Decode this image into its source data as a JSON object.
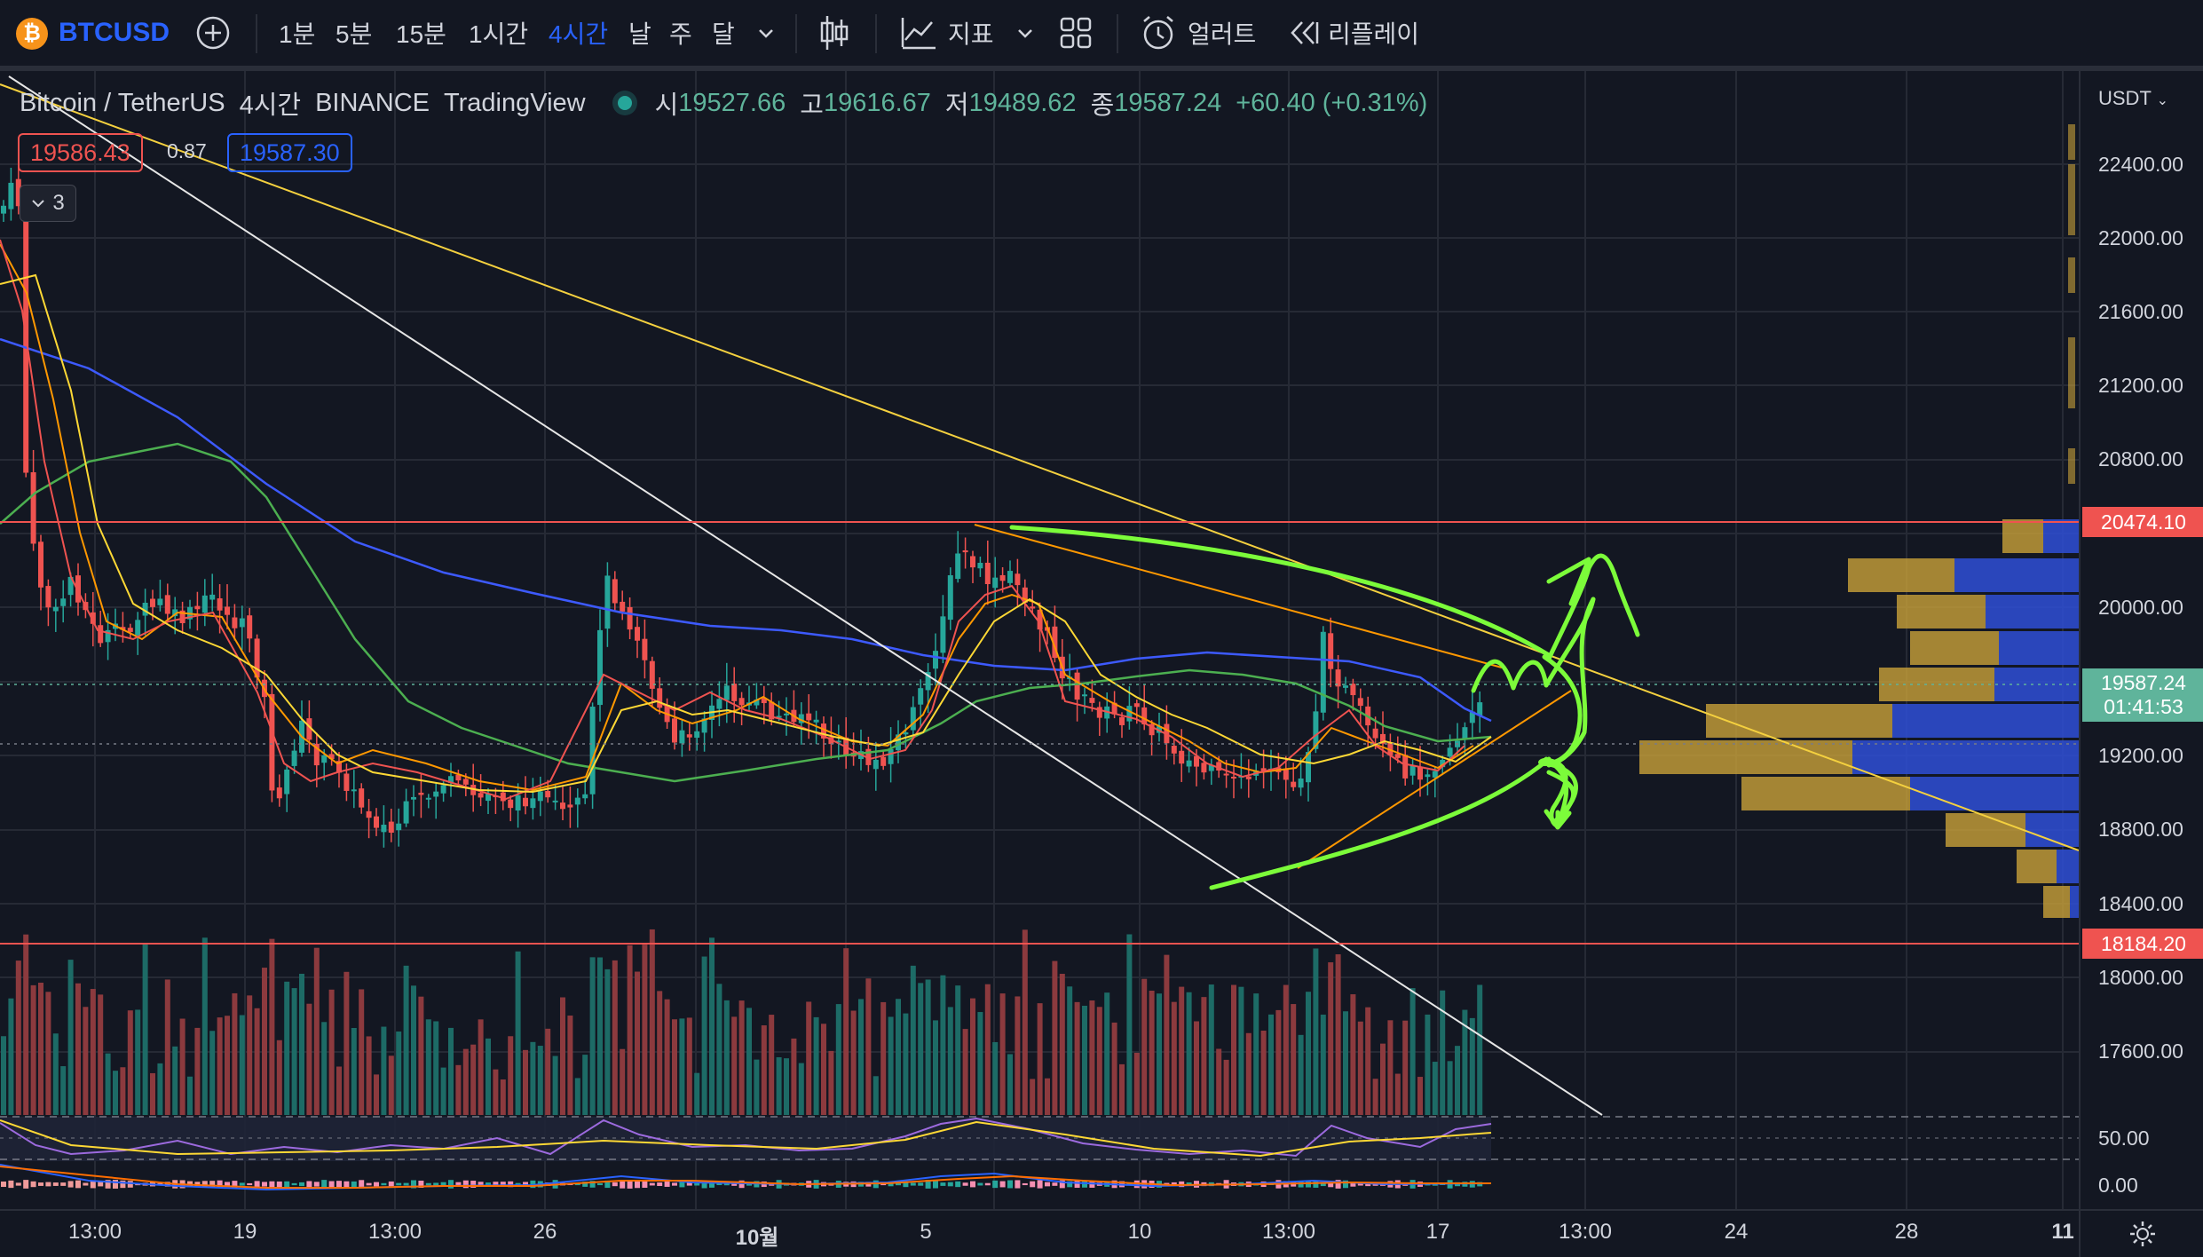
{
  "toolbar": {
    "symbol": "BTCUSD",
    "logo_glyph": "₿",
    "intervals": [
      "1분",
      "5분",
      "15분",
      "1시간",
      "4시간",
      "날",
      "주",
      "달"
    ],
    "active_interval": "4시간",
    "indicators_label": "지표",
    "alert_label": "얼러트",
    "replay_label": "리플레이"
  },
  "legend": {
    "pair": "Bitcoin / TetherUS",
    "interval": "4시간",
    "exchange": "BINANCE",
    "source": "TradingView",
    "open_label": "시",
    "open": "19527.66",
    "high_label": "고",
    "high": "19616.67",
    "low_label": "저",
    "low": "19489.62",
    "close_label": "종",
    "close": "19587.24",
    "change": "+60.40 (+0.31%)",
    "bid": "19586.43",
    "spread": "0.87",
    "ask": "19587.30",
    "studies_count": "3"
  },
  "price_axis": {
    "currency": "USDT",
    "labels": [
      "22400.00",
      "22000.00",
      "21600.00",
      "21200.00",
      "20800.00",
      "20000.00",
      "19200.00",
      "18800.00",
      "18400.00",
      "18000.00",
      "17600.00"
    ],
    "resistance_tag": "20474.10",
    "support_tag": "18184.20",
    "last_price": "19587.24",
    "countdown": "01:41:53",
    "rsi_label": "50.00",
    "macd_label": "0.00"
  },
  "time_axis": {
    "labels": [
      "13:00",
      "19",
      "13:00",
      "26",
      "10월",
      "5",
      "10",
      "13:00",
      "17",
      "13:00",
      "24",
      "28",
      "11"
    ]
  },
  "colors": {
    "background": "#131722",
    "up": "#26a69a",
    "down": "#ef5350",
    "accent": "#2962ff",
    "drawing": "#7cfc3a"
  },
  "chart_data": {
    "type": "candlestick",
    "symbol": "BTCUSDT",
    "interval": "4시간",
    "horizontal_lines": [
      20474.1,
      18184.2
    ],
    "last_close": 19587.24
  }
}
